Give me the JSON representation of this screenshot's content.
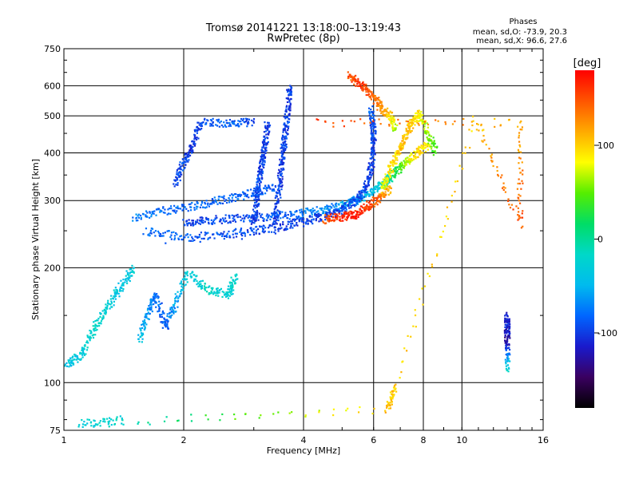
{
  "chart_data": {
    "type": "scatter",
    "title": "Tromsø 20141221 13:18:00–13:19:43",
    "subtitle": "RwPretec (8p)",
    "xlabel": "Frequency [MHz]",
    "ylabel": "Stationary phase Virtual Height [km]",
    "x_scale": "log",
    "y_scale": "log",
    "xlim": [
      1,
      16
    ],
    "ylim": [
      75,
      750
    ],
    "x_ticks": [
      1,
      2,
      4,
      6,
      8,
      10,
      16
    ],
    "y_ticks": [
      75,
      100,
      200,
      300,
      400,
      500,
      600,
      750
    ],
    "grid": true,
    "stats": {
      "heading": "Phases",
      "o_line": "mean, sd,O:  -73.9, 20.3",
      "x_line": "mean, sd,X:  96.6, 27.6"
    },
    "colorbar": {
      "label": "[deg]",
      "min": -180,
      "max": 180,
      "ticks": [
        100,
        0,
        -100
      ],
      "colormap": [
        "#000000",
        "#3a0060",
        "#1a1acc",
        "#0066ff",
        "#00bbee",
        "#00d8c8",
        "#00dd66",
        "#55ee00",
        "#ffff00",
        "#ffaa00",
        "#ff5500",
        "#ff0000"
      ]
    },
    "series": [
      {
        "values": [
          [
            2.0,
            262,
            -100
          ],
          [
            2.3,
            266,
            -95
          ],
          [
            2.7,
            270,
            -95
          ],
          [
            3.2,
            272,
            -90
          ],
          [
            3.8,
            276,
            -80
          ],
          [
            4.4,
            283,
            -70
          ],
          [
            5.0,
            292,
            -60
          ],
          [
            5.5,
            302,
            -50
          ],
          [
            6.0,
            318,
            -40
          ],
          [
            6.4,
            335,
            -20
          ],
          [
            6.8,
            355,
            20
          ],
          [
            7.2,
            375,
            60
          ],
          [
            7.7,
            400,
            100
          ],
          [
            8.2,
            420,
            90
          ]
        ]
      },
      {
        "values": [
          [
            1.6,
            250,
            -80
          ],
          [
            2.0,
            240,
            -85
          ],
          [
            2.5,
            244,
            -90
          ],
          [
            3.0,
            250,
            -95
          ],
          [
            3.5,
            256,
            -100
          ],
          [
            4.0,
            265,
            -100
          ],
          [
            4.5,
            272,
            -100
          ],
          [
            5.0,
            283,
            -95
          ],
          [
            5.4,
            300,
            -90
          ],
          [
            5.7,
            320,
            -95
          ],
          [
            5.9,
            360,
            -100
          ],
          [
            6.0,
            410,
            -100
          ],
          [
            6.0,
            460,
            -95
          ],
          [
            5.9,
            520,
            -90
          ]
        ]
      },
      {
        "values": [
          [
            1.8,
            232,
            -90
          ],
          [
            2.2,
            234,
            -90
          ],
          [
            2.8,
            238,
            -95
          ],
          [
            3.4,
            246,
            -100
          ],
          [
            4.0,
            257,
            -100
          ],
          [
            4.6,
            268,
            -90
          ],
          [
            5.1,
            278,
            -80
          ]
        ]
      },
      {
        "values": [
          [
            4.5,
            268,
            150
          ],
          [
            5.0,
            272,
            165
          ],
          [
            5.4,
            276,
            170
          ],
          [
            5.8,
            290,
            160
          ],
          [
            6.2,
            305,
            140
          ],
          [
            6.6,
            325,
            110
          ]
        ]
      },
      {
        "values": [
          [
            1.5,
            272,
            -75
          ],
          [
            1.8,
            282,
            -80
          ],
          [
            2.2,
            292,
            -80
          ],
          [
            2.6,
            304,
            -85
          ],
          [
            3.0,
            316,
            -85
          ],
          [
            3.4,
            326,
            -90
          ]
        ]
      },
      {
        "values": [
          [
            3.0,
            260,
            -100
          ],
          [
            3.05,
            300,
            -100
          ],
          [
            3.1,
            340,
            -95
          ],
          [
            3.15,
            380,
            -100
          ],
          [
            3.2,
            420,
            -100
          ],
          [
            3.25,
            480,
            -100
          ]
        ]
      },
      {
        "values": [
          [
            3.4,
            260,
            -100
          ],
          [
            3.45,
            300,
            -95
          ],
          [
            3.5,
            350,
            -100
          ],
          [
            3.55,
            400,
            -100
          ],
          [
            3.6,
            450,
            -95
          ],
          [
            3.65,
            520,
            -100
          ],
          [
            3.7,
            600,
            -100
          ]
        ]
      },
      {
        "values": [
          [
            6.3,
            320,
            80
          ],
          [
            6.6,
            360,
            90
          ],
          [
            6.9,
            400,
            100
          ],
          [
            7.2,
            440,
            110
          ],
          [
            7.5,
            480,
            100
          ],
          [
            7.8,
            510,
            90
          ],
          [
            8.2,
            450,
            60
          ],
          [
            8.6,
            400,
            40
          ]
        ]
      },
      {
        "values": [
          [
            5.2,
            640,
            150
          ],
          [
            5.6,
            600,
            160
          ],
          [
            6.0,
            560,
            140
          ],
          [
            6.3,
            520,
            120
          ],
          [
            6.6,
            500,
            100
          ],
          [
            6.8,
            460,
            60
          ]
        ]
      },
      {
        "values": [
          [
            1.02,
            112,
            -40
          ],
          [
            1.1,
            118,
            -30
          ],
          [
            1.2,
            140,
            -20
          ],
          [
            1.3,
            160,
            -30
          ],
          [
            1.4,
            180,
            -40
          ],
          [
            1.5,
            200,
            -30
          ]
        ]
      },
      {
        "values": [
          [
            1.55,
            130,
            -40
          ],
          [
            1.62,
            150,
            -60
          ],
          [
            1.7,
            170,
            -80
          ],
          [
            1.8,
            140,
            -90
          ],
          [
            1.9,
            160,
            -60
          ],
          [
            2.05,
            195,
            -30
          ],
          [
            2.3,
            175,
            -20
          ],
          [
            2.6,
            170,
            -30
          ],
          [
            2.7,
            190,
            -20
          ]
        ]
      },
      {
        "values": [
          [
            1.9,
            330,
            -100
          ],
          [
            2.0,
            380,
            -90
          ],
          [
            2.1,
            410,
            -110
          ],
          [
            2.2,
            480,
            -90
          ],
          [
            2.6,
            480,
            -80
          ],
          [
            3.0,
            480,
            -100
          ]
        ]
      },
      {
        "values": [
          [
            13.0,
            150,
            -120
          ],
          [
            13.0,
            140,
            -110
          ],
          [
            13.0,
            128,
            -130
          ],
          [
            13.0,
            108,
            -20
          ]
        ]
      },
      {
        "values": [
          [
            4.3,
            480,
            160
          ],
          [
            14.0,
            480,
            110
          ],
          [
            14.0,
            260,
            150
          ],
          [
            10.8,
            490,
            100
          ],
          [
            6.8,
            98,
            100
          ],
          [
            6.5,
            85,
            110
          ],
          [
            1.1,
            78,
            -30
          ],
          [
            1.4,
            80,
            -20
          ]
        ]
      }
    ]
  }
}
